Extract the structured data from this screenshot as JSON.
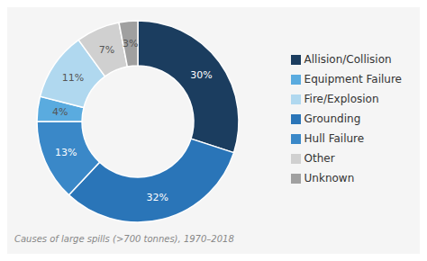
{
  "chart_data": {
    "type": "pie",
    "title": "Causes of large spills (>700 tonnes), 1970–2018",
    "categories": [
      "Allision/Collision",
      "Grounding",
      "Hull Failure",
      "Equipment Failure",
      "Fire/Explosion",
      "Other",
      "Unknown"
    ],
    "values": [
      30,
      32,
      13,
      4,
      11,
      7,
      3
    ],
    "value_labels": [
      "30%",
      "32%",
      "13%",
      "4%",
      "11%",
      "7%",
      "3%"
    ],
    "colors": [
      "#1b3d5f",
      "#2a75b8",
      "#3a88c8",
      "#5aabdf",
      "#b0d8ef",
      "#d0d0d0",
      "#a0a0a0"
    ],
    "data_labels": true,
    "legend": "right"
  }
}
